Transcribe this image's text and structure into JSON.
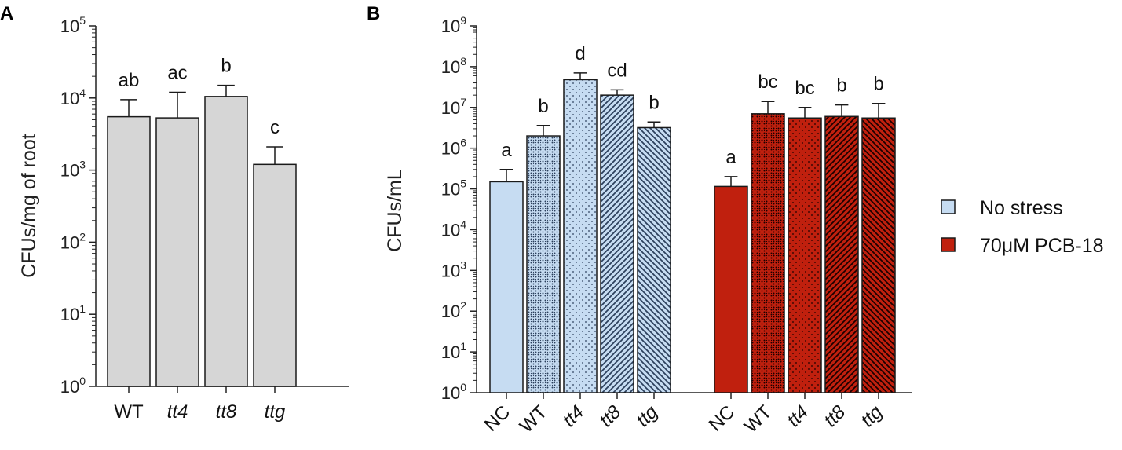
{
  "chart_data": [
    {
      "panel": "A",
      "type": "bar",
      "scale": "log10",
      "ylabel": "CFUs/mg of root",
      "ylim": [
        1,
        100000
      ],
      "y_tick_exponents": [
        0,
        1,
        2,
        3,
        4,
        5
      ],
      "y_tick_base": "10",
      "categories": [
        {
          "label": "WT",
          "italic": false
        },
        {
          "label": "tt4",
          "italic": true
        },
        {
          "label": "tt8",
          "italic": true
        },
        {
          "label": "ttg",
          "italic": true
        }
      ],
      "values": [
        5500,
        5300,
        10500,
        1200
      ],
      "error_upper": [
        9500,
        12000,
        15000,
        2100
      ],
      "significance": [
        "ab",
        "ac",
        "b",
        "c"
      ],
      "colors": {
        "fill": "#d6d6d6",
        "stroke": "#1a1a1a"
      }
    },
    {
      "panel": "B",
      "type": "bar",
      "scale": "log10",
      "ylabel": "CFUs/mL",
      "ylim": [
        1,
        1000000000
      ],
      "y_tick_exponents": [
        0,
        1,
        2,
        3,
        4,
        5,
        6,
        7,
        8,
        9
      ],
      "y_tick_base": "10",
      "categories": [
        {
          "label": "NC",
          "italic": false
        },
        {
          "label": "WT",
          "italic": false
        },
        {
          "label": "tt4",
          "italic": true
        },
        {
          "label": "tt8",
          "italic": true
        },
        {
          "label": "ttg",
          "italic": true
        }
      ],
      "series": [
        {
          "name": "No stress",
          "color": "#c6dcf2",
          "pattern_color": "#2b3f5c",
          "values": [
            150000,
            2000000,
            48000000,
            20000000,
            3200000
          ],
          "error_upper": [
            300000,
            3600000,
            70000000,
            27000000,
            4400000
          ],
          "significance": [
            "a",
            "b",
            "d",
            "cd",
            "b"
          ]
        },
        {
          "name": "70μM PCB-18",
          "color": "#c0200e",
          "pattern_color": "#1a0000",
          "values": [
            115000,
            7000000,
            5500000,
            6000000,
            5500000
          ],
          "error_upper": [
            200000,
            14000000,
            10000000,
            11500000,
            12500000
          ],
          "significance": [
            "a",
            "bc",
            "bc",
            "b",
            "b"
          ]
        }
      ],
      "bar_patterns": [
        "solid",
        "checker",
        "dots",
        "diag-right",
        "diag-left"
      ],
      "legend": {
        "placement": "right"
      }
    }
  ]
}
